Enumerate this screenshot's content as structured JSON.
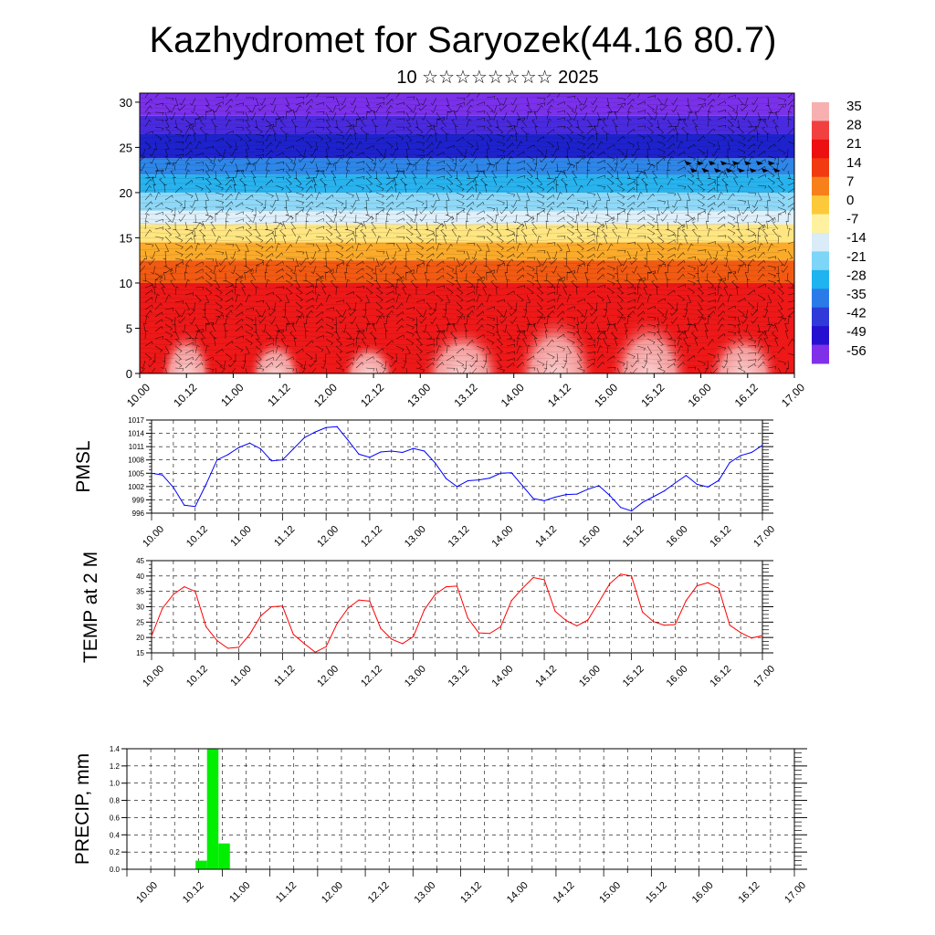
{
  "title": "Kazhydromet for Saryozek(44.16 80.7)",
  "subtitle": "10 ☆☆☆☆☆☆☆☆ 2025",
  "time_ticks": [
    "10.00",
    "10.12",
    "11.00",
    "11.12",
    "12.00",
    "12.12",
    "13.00",
    "13.12",
    "14.00",
    "14.12",
    "15.00",
    "15.12",
    "16.00",
    "16.12",
    "17.00"
  ],
  "chart_data": [
    {
      "type": "heatmap",
      "name": "temperature-cross-section",
      "ylim": [
        0,
        31
      ],
      "yticks": [
        0,
        5,
        10,
        15,
        20,
        25,
        30
      ],
      "colorbar_labels": [
        "35",
        "28",
        "21",
        "14",
        "7",
        "0",
        "-7",
        "-14",
        "-21",
        "-28",
        "-35",
        "-42",
        "-49",
        "-56"
      ],
      "colorbar_colors": [
        "#f7b0b0",
        "#f24040",
        "#ec1010",
        "#f23a10",
        "#f7801a",
        "#fbc93a",
        "#fff1a0",
        "#d9ecf7",
        "#7dd5f7",
        "#1fb3f0",
        "#2a7be8",
        "#2f3ad8",
        "#2610d0",
        "#8030e8"
      ],
      "bands": [
        {
          "h0": 0,
          "h1": 10,
          "color": "#ee1818"
        },
        {
          "h0": 10,
          "h1": 12.5,
          "color": "#f25a12"
        },
        {
          "h0": 12.5,
          "h1": 14.5,
          "color": "#fbab2a"
        },
        {
          "h0": 14.5,
          "h1": 16.5,
          "color": "#ffe680"
        },
        {
          "h0": 16.5,
          "h1": 18,
          "color": "#dff0fa"
        },
        {
          "h0": 18,
          "h1": 20,
          "color": "#8fd8f7"
        },
        {
          "h0": 20,
          "h1": 22,
          "color": "#28b3ef"
        },
        {
          "h0": 22,
          "h1": 23.8,
          "color": "#2e86e8"
        },
        {
          "h0": 23.8,
          "h1": 26.5,
          "color": "#1e22cc"
        },
        {
          "h0": 26.5,
          "h1": 28.5,
          "color": "#4a2ade"
        },
        {
          "h0": 28.5,
          "h1": 31,
          "color": "#7b30ea"
        }
      ],
      "warm_cells": [
        {
          "t": 0.5,
          "h": 5.5,
          "w": 0.3
        },
        {
          "t": 1.45,
          "h": 4.5,
          "w": 0.3
        },
        {
          "t": 2.45,
          "h": 4.0,
          "w": 0.3
        },
        {
          "t": 3.45,
          "h": 6.0,
          "w": 0.45
        },
        {
          "t": 4.45,
          "h": 7.5,
          "w": 0.45
        },
        {
          "t": 5.45,
          "h": 7.2,
          "w": 0.45
        },
        {
          "t": 6.45,
          "h": 5.5,
          "w": 0.4
        }
      ]
    },
    {
      "type": "line",
      "name": "pmsl",
      "ylabel": "PMSL",
      "ylim": [
        996,
        1017
      ],
      "yticks": [
        996,
        999,
        1002,
        1005,
        1008,
        1011,
        1014,
        1017
      ],
      "color": "#0000ff",
      "x": [
        0.0,
        0.125,
        0.25,
        0.375,
        0.5,
        0.625,
        0.75,
        0.875,
        1.0,
        1.125,
        1.25,
        1.375,
        1.5,
        1.625,
        1.75,
        1.875,
        2.0,
        2.125,
        2.25,
        2.375,
        2.5,
        2.625,
        2.75,
        2.875,
        3.0,
        3.125,
        3.25,
        3.375,
        3.5,
        3.625,
        3.75,
        3.875,
        4.0,
        4.125,
        4.25,
        4.375,
        4.5,
        4.625,
        4.75,
        4.875,
        5.0,
        5.125,
        5.25,
        5.375,
        5.5,
        5.625,
        5.75,
        5.875,
        6.0,
        6.125,
        6.25,
        6.375,
        6.5,
        6.625,
        6.75,
        6.875,
        7.0
      ],
      "y": [
        1005.0,
        1004.6,
        1001.8,
        997.8,
        997.5,
        1002.5,
        1008.0,
        1009.2,
        1010.8,
        1011.8,
        1010.5,
        1007.8,
        1008.0,
        1010.5,
        1013.0,
        1014.3,
        1015.3,
        1015.5,
        1012.5,
        1009.3,
        1008.6,
        1009.8,
        1010.0,
        1009.7,
        1010.6,
        1010.0,
        1007.3,
        1003.8,
        1002.0,
        1003.3,
        1003.5,
        1003.9,
        1005.0,
        1005.1,
        1002.2,
        999.3,
        998.8,
        999.6,
        1000.2,
        1000.3,
        1001.4,
        1002.2,
        1000.0,
        997.3,
        996.5,
        998.4,
        999.7,
        1001.0,
        1002.8,
        1004.5,
        1002.5,
        1001.9,
        1003.4,
        1007.4,
        1009.0,
        1009.7,
        1011.3
      ]
    },
    {
      "type": "line",
      "name": "temp-2m",
      "ylabel": "TEMP at 2 M",
      "ylim": [
        15,
        45
      ],
      "yticks": [
        15,
        20,
        25,
        30,
        35,
        40,
        45
      ],
      "color": "#ff0000",
      "x": [
        0.0,
        0.125,
        0.25,
        0.375,
        0.5,
        0.625,
        0.75,
        0.875,
        1.0,
        1.125,
        1.25,
        1.375,
        1.5,
        1.625,
        1.75,
        1.875,
        2.0,
        2.125,
        2.25,
        2.375,
        2.5,
        2.625,
        2.75,
        2.875,
        3.0,
        3.125,
        3.25,
        3.375,
        3.5,
        3.625,
        3.75,
        3.875,
        4.0,
        4.125,
        4.25,
        4.375,
        4.5,
        4.625,
        4.75,
        4.875,
        5.0,
        5.125,
        5.25,
        5.375,
        5.5,
        5.625,
        5.75,
        5.875,
        6.0,
        6.125,
        6.25,
        6.375,
        6.5,
        6.625,
        6.75,
        6.875,
        7.0
      ],
      "y": [
        20.5,
        29.5,
        34.0,
        36.5,
        35.0,
        23.5,
        19.0,
        16.5,
        16.8,
        21.0,
        27.0,
        30.0,
        30.2,
        21.0,
        18.0,
        15.2,
        17.0,
        24.5,
        29.5,
        32.2,
        31.8,
        23.0,
        19.5,
        18.0,
        20.3,
        29.0,
        34.0,
        36.5,
        36.7,
        26.3,
        21.5,
        21.3,
        23.5,
        32.0,
        36.0,
        39.5,
        38.8,
        28.5,
        25.5,
        23.8,
        25.7,
        31.5,
        37.5,
        40.6,
        40.0,
        28.3,
        25.2,
        24.0,
        24.2,
        32.0,
        36.8,
        37.8,
        36.0,
        24.0,
        21.6,
        19.8,
        20.6
      ]
    },
    {
      "type": "bar",
      "name": "precip",
      "ylabel": "PRECIP, mm",
      "ylim": [
        0,
        1.4
      ],
      "yticks": [
        "0.0",
        "0.2",
        "0.4",
        "0.6",
        "0.8",
        "1.0",
        "1.2",
        "1.4"
      ],
      "color": "#00ee00",
      "bars": [
        {
          "x0": 0.72,
          "x1": 0.84,
          "value": 0.1
        },
        {
          "x0": 0.84,
          "x1": 0.96,
          "value": 1.4
        },
        {
          "x0": 0.96,
          "x1": 1.08,
          "value": 0.3
        }
      ]
    }
  ]
}
